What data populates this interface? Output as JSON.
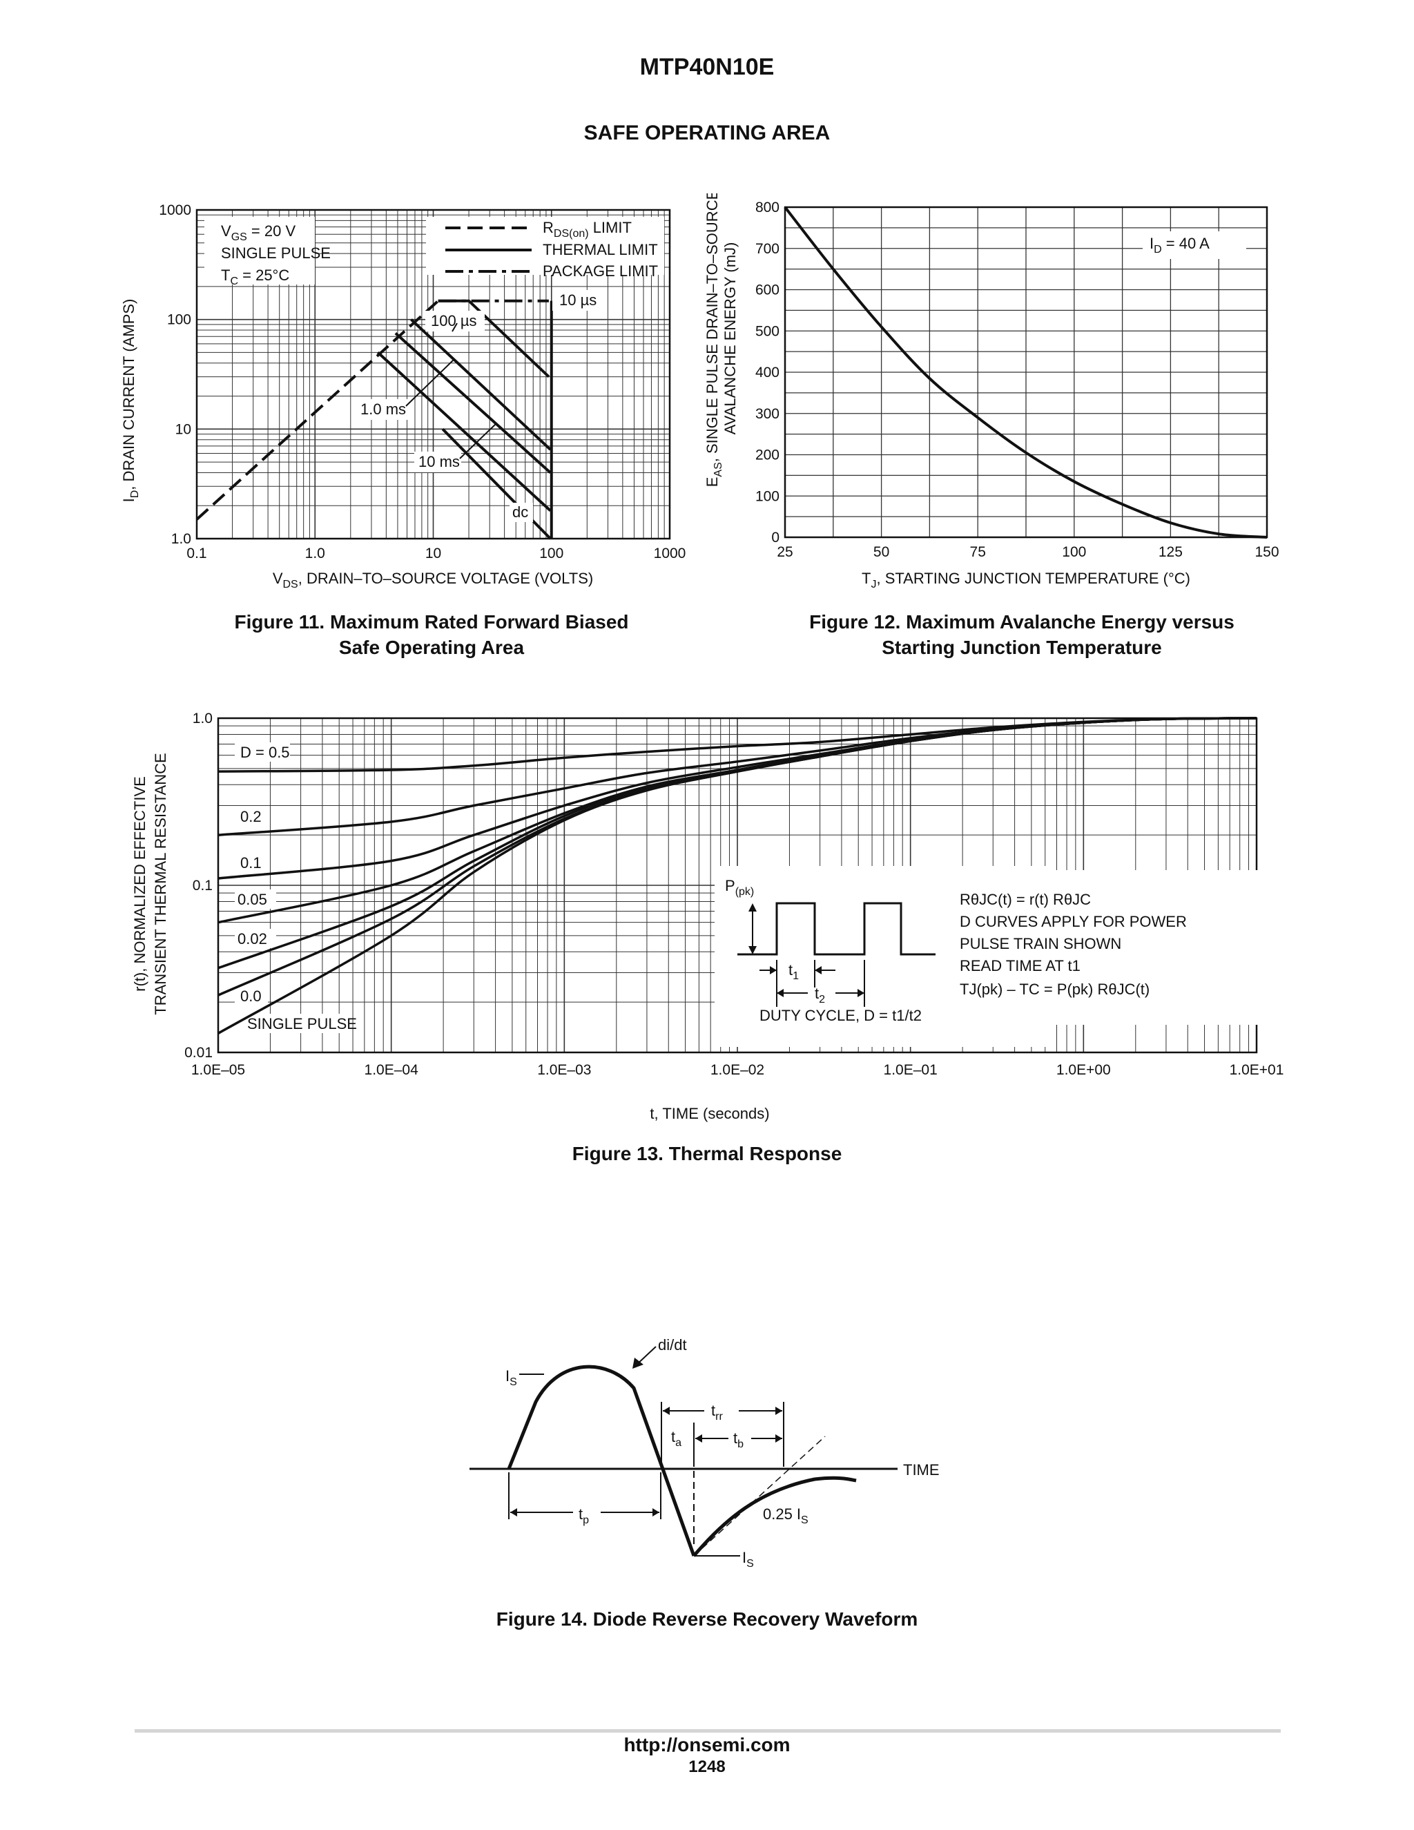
{
  "header": {
    "doc_title": "MTP40N10E",
    "section_title": "SAFE OPERATING AREA"
  },
  "fig11": {
    "caption_line1": "Figure 11. Maximum Rated Forward Biased",
    "caption_line2": "Safe Operating Area",
    "ylabel_prefix": "I",
    "ylabel_sub": "D",
    "ylabel_rest": ", DRAIN CURRENT (AMPS)",
    "xlabel_prefix": "V",
    "xlabel_sub": "DS",
    "xlabel_rest": ", DRAIN–TO–SOURCE VOLTAGE (VOLTS)",
    "note1_prefix": "V",
    "note1_sub": "GS",
    "note1_rest": " = 20 V",
    "note2": "SINGLE PULSE",
    "note3_prefix": "T",
    "note3_sub": "C",
    "note3_rest": " = 25°C",
    "legend1_prefix": "R",
    "legend1_sub": "DS(on)",
    "legend1_rest": " LIMIT",
    "legend2": "THERMAL LIMIT",
    "legend3": "PACKAGE LIMIT",
    "lab_10us": "10 µs",
    "lab_100us": "100 µs",
    "lab_1ms": "1.0 ms",
    "lab_10ms": "10 ms",
    "lab_dc": "dc"
  },
  "fig12": {
    "caption_line1": "Figure 12. Maximum Avalanche Energy versus",
    "caption_line2": "Starting Junction Temperature",
    "ylabel1_prefix": "E",
    "ylabel1_sub": "AS",
    "ylabel1_rest": ", SINGLE PULSE DRAIN–TO–SOURCE",
    "ylabel2": "AVALANCHE ENERGY (mJ)",
    "xlabel_prefix": "T",
    "xlabel_sub": "J",
    "xlabel_rest": ", STARTING JUNCTION TEMPERATURE (°C)",
    "cond_prefix": "I",
    "cond_sub": "D",
    "cond_rest": " = 40 A"
  },
  "fig13": {
    "caption": "Figure 13. Thermal Response",
    "ylabel1": "r(t), NORMALIZED EFFECTIVE",
    "ylabel2": "TRANSIENT THERMAL RESISTANCE",
    "xlabel": "t, TIME (seconds)",
    "curve_labels": [
      "D = 0.5",
      "0.2",
      "0.1",
      "0.05",
      "0.02",
      "0.0",
      "SINGLE PULSE"
    ],
    "ppk_prefix": "P",
    "ppk_sub": "(pk)",
    "t1_prefix": "t",
    "t1_sub": "1",
    "t2_prefix": "t",
    "t2_sub": "2",
    "duty_text": "DUTY CYCLE, D = t1/t2",
    "note1": "RθJC(t) = r(t) RθJC",
    "note2": "D CURVES APPLY FOR POWER",
    "note3": "PULSE TRAIN SHOWN",
    "note4": "READ TIME AT t1",
    "note5": "TJ(pk) – TC = P(pk) RθJC(t)"
  },
  "fig14": {
    "caption": "Figure 14. Diode Reverse Recovery Waveform",
    "is_top_prefix": "I",
    "is_top_sub": "S",
    "didt": "di/dt",
    "trr_prefix": "t",
    "trr_sub": "rr",
    "ta_prefix": "t",
    "ta_sub": "a",
    "tb_prefix": "t",
    "tb_sub": "b",
    "time_label": "TIME",
    "tp_prefix": "t",
    "tp_sub": "p",
    "quarter_prefix": "0.25 I",
    "quarter_sub": "S",
    "is_bot_prefix": "I",
    "is_bot_sub": "S"
  },
  "footer": {
    "url": "http://onsemi.com",
    "page": "1248"
  },
  "chart_data": [
    {
      "type": "line",
      "title": "Figure 11. Maximum Rated Forward Biased Safe Operating Area",
      "xlabel": "VDS, DRAIN–TO–SOURCE VOLTAGE (VOLTS)",
      "ylabel": "ID, DRAIN CURRENT (AMPS)",
      "x_scale": "log",
      "y_scale": "log",
      "xlim": [
        0.1,
        1000
      ],
      "ylim": [
        1.0,
        1000
      ],
      "x_ticks": [
        "0.1",
        "1.0",
        "10",
        "100",
        "1000"
      ],
      "y_ticks": [
        "1.0",
        "10",
        "100",
        "1000"
      ],
      "series": [
        {
          "name": "RDS(on) LIMIT",
          "points": [
            [
              0.1,
              1.5
            ],
            [
              11,
              148
            ]
          ]
        },
        {
          "name": "PACKAGE LIMIT",
          "points": [
            [
              11,
              148
            ],
            [
              95,
              148
            ]
          ]
        },
        {
          "name": "10 µs",
          "points": [
            [
              11,
              148
            ],
            [
              20,
              148
            ],
            [
              95,
              30
            ]
          ]
        },
        {
          "name": "100 µs",
          "points": [
            [
              6.5,
              100
            ],
            [
              98,
              6.5
            ]
          ]
        },
        {
          "name": "1.0 ms",
          "points": [
            [
              4.8,
              75
            ],
            [
              98,
              4.0
            ]
          ]
        },
        {
          "name": "10 ms",
          "points": [
            [
              3.4,
              50
            ],
            [
              98,
              1.8
            ]
          ]
        },
        {
          "name": "dc",
          "points": [
            [
              12,
              10
            ],
            [
              98,
              1.0
            ]
          ]
        }
      ],
      "vertical_limit_VDS": 100
    },
    {
      "type": "line",
      "title": "Figure 12. Maximum Avalanche Energy versus Starting Junction Temperature",
      "xlabel": "TJ, STARTING JUNCTION TEMPERATURE (°C)",
      "ylabel": "EAS, SINGLE PULSE DRAIN–TO–SOURCE AVALANCHE ENERGY (mJ)",
      "xlim": [
        25,
        150
      ],
      "ylim": [
        0,
        800
      ],
      "x_ticks": [
        "25",
        "50",
        "75",
        "100",
        "125",
        "150"
      ],
      "y_ticks": [
        "0",
        "100",
        "200",
        "300",
        "400",
        "500",
        "600",
        "700",
        "800"
      ],
      "series": [
        {
          "name": "ID = 40 A",
          "x": [
            25,
            37.5,
            50,
            62.5,
            75,
            87.5,
            100,
            112.5,
            125,
            137.5,
            150
          ],
          "y": [
            800,
            650,
            510,
            385,
            290,
            205,
            135,
            80,
            35,
            8,
            0
          ]
        }
      ]
    },
    {
      "type": "line",
      "title": "Figure 13. Thermal Response",
      "xlabel": "t, TIME (seconds)",
      "ylabel": "r(t), NORMALIZED EFFECTIVE TRANSIENT THERMAL RESISTANCE",
      "x_scale": "log",
      "y_scale": "log",
      "xlim": [
        1e-05,
        10
      ],
      "ylim": [
        0.01,
        1.0
      ],
      "x_ticks": [
        "1.0E–05",
        "1.0E–04",
        "1.0E–03",
        "1.0E–02",
        "1.0E–01",
        "1.0E+00",
        "1.0E+01"
      ],
      "y_ticks": [
        "0.01",
        "0.1",
        "1.0"
      ],
      "x": [
        1e-05,
        0.0001,
        0.0003,
        0.001,
        0.003,
        0.01,
        0.03,
        0.1,
        0.3,
        1,
        3,
        10
      ],
      "series": [
        {
          "name": "D = 0.5",
          "values": [
            0.48,
            0.49,
            0.52,
            0.58,
            0.63,
            0.68,
            0.72,
            0.8,
            0.88,
            0.95,
            0.99,
            1.0
          ]
        },
        {
          "name": "0.2",
          "values": [
            0.2,
            0.24,
            0.3,
            0.38,
            0.47,
            0.55,
            0.64,
            0.76,
            0.86,
            0.94,
            0.99,
            1.0
          ]
        },
        {
          "name": "0.1",
          "values": [
            0.11,
            0.14,
            0.2,
            0.3,
            0.41,
            0.51,
            0.61,
            0.74,
            0.85,
            0.94,
            0.99,
            1.0
          ]
        },
        {
          "name": "0.05",
          "values": [
            0.06,
            0.1,
            0.16,
            0.27,
            0.39,
            0.49,
            0.6,
            0.73,
            0.85,
            0.94,
            0.99,
            1.0
          ]
        },
        {
          "name": "0.02",
          "values": [
            0.032,
            0.075,
            0.14,
            0.26,
            0.38,
            0.48,
            0.59,
            0.73,
            0.85,
            0.94,
            0.99,
            1.0
          ]
        },
        {
          "name": "0.0",
          "values": [
            0.022,
            0.063,
            0.13,
            0.25,
            0.37,
            0.48,
            0.59,
            0.73,
            0.85,
            0.94,
            0.99,
            1.0
          ]
        },
        {
          "name": "SINGLE PULSE",
          "values": [
            0.013,
            0.05,
            0.12,
            0.245,
            0.37,
            0.48,
            0.59,
            0.73,
            0.85,
            0.94,
            0.99,
            1.0
          ]
        }
      ]
    }
  ]
}
